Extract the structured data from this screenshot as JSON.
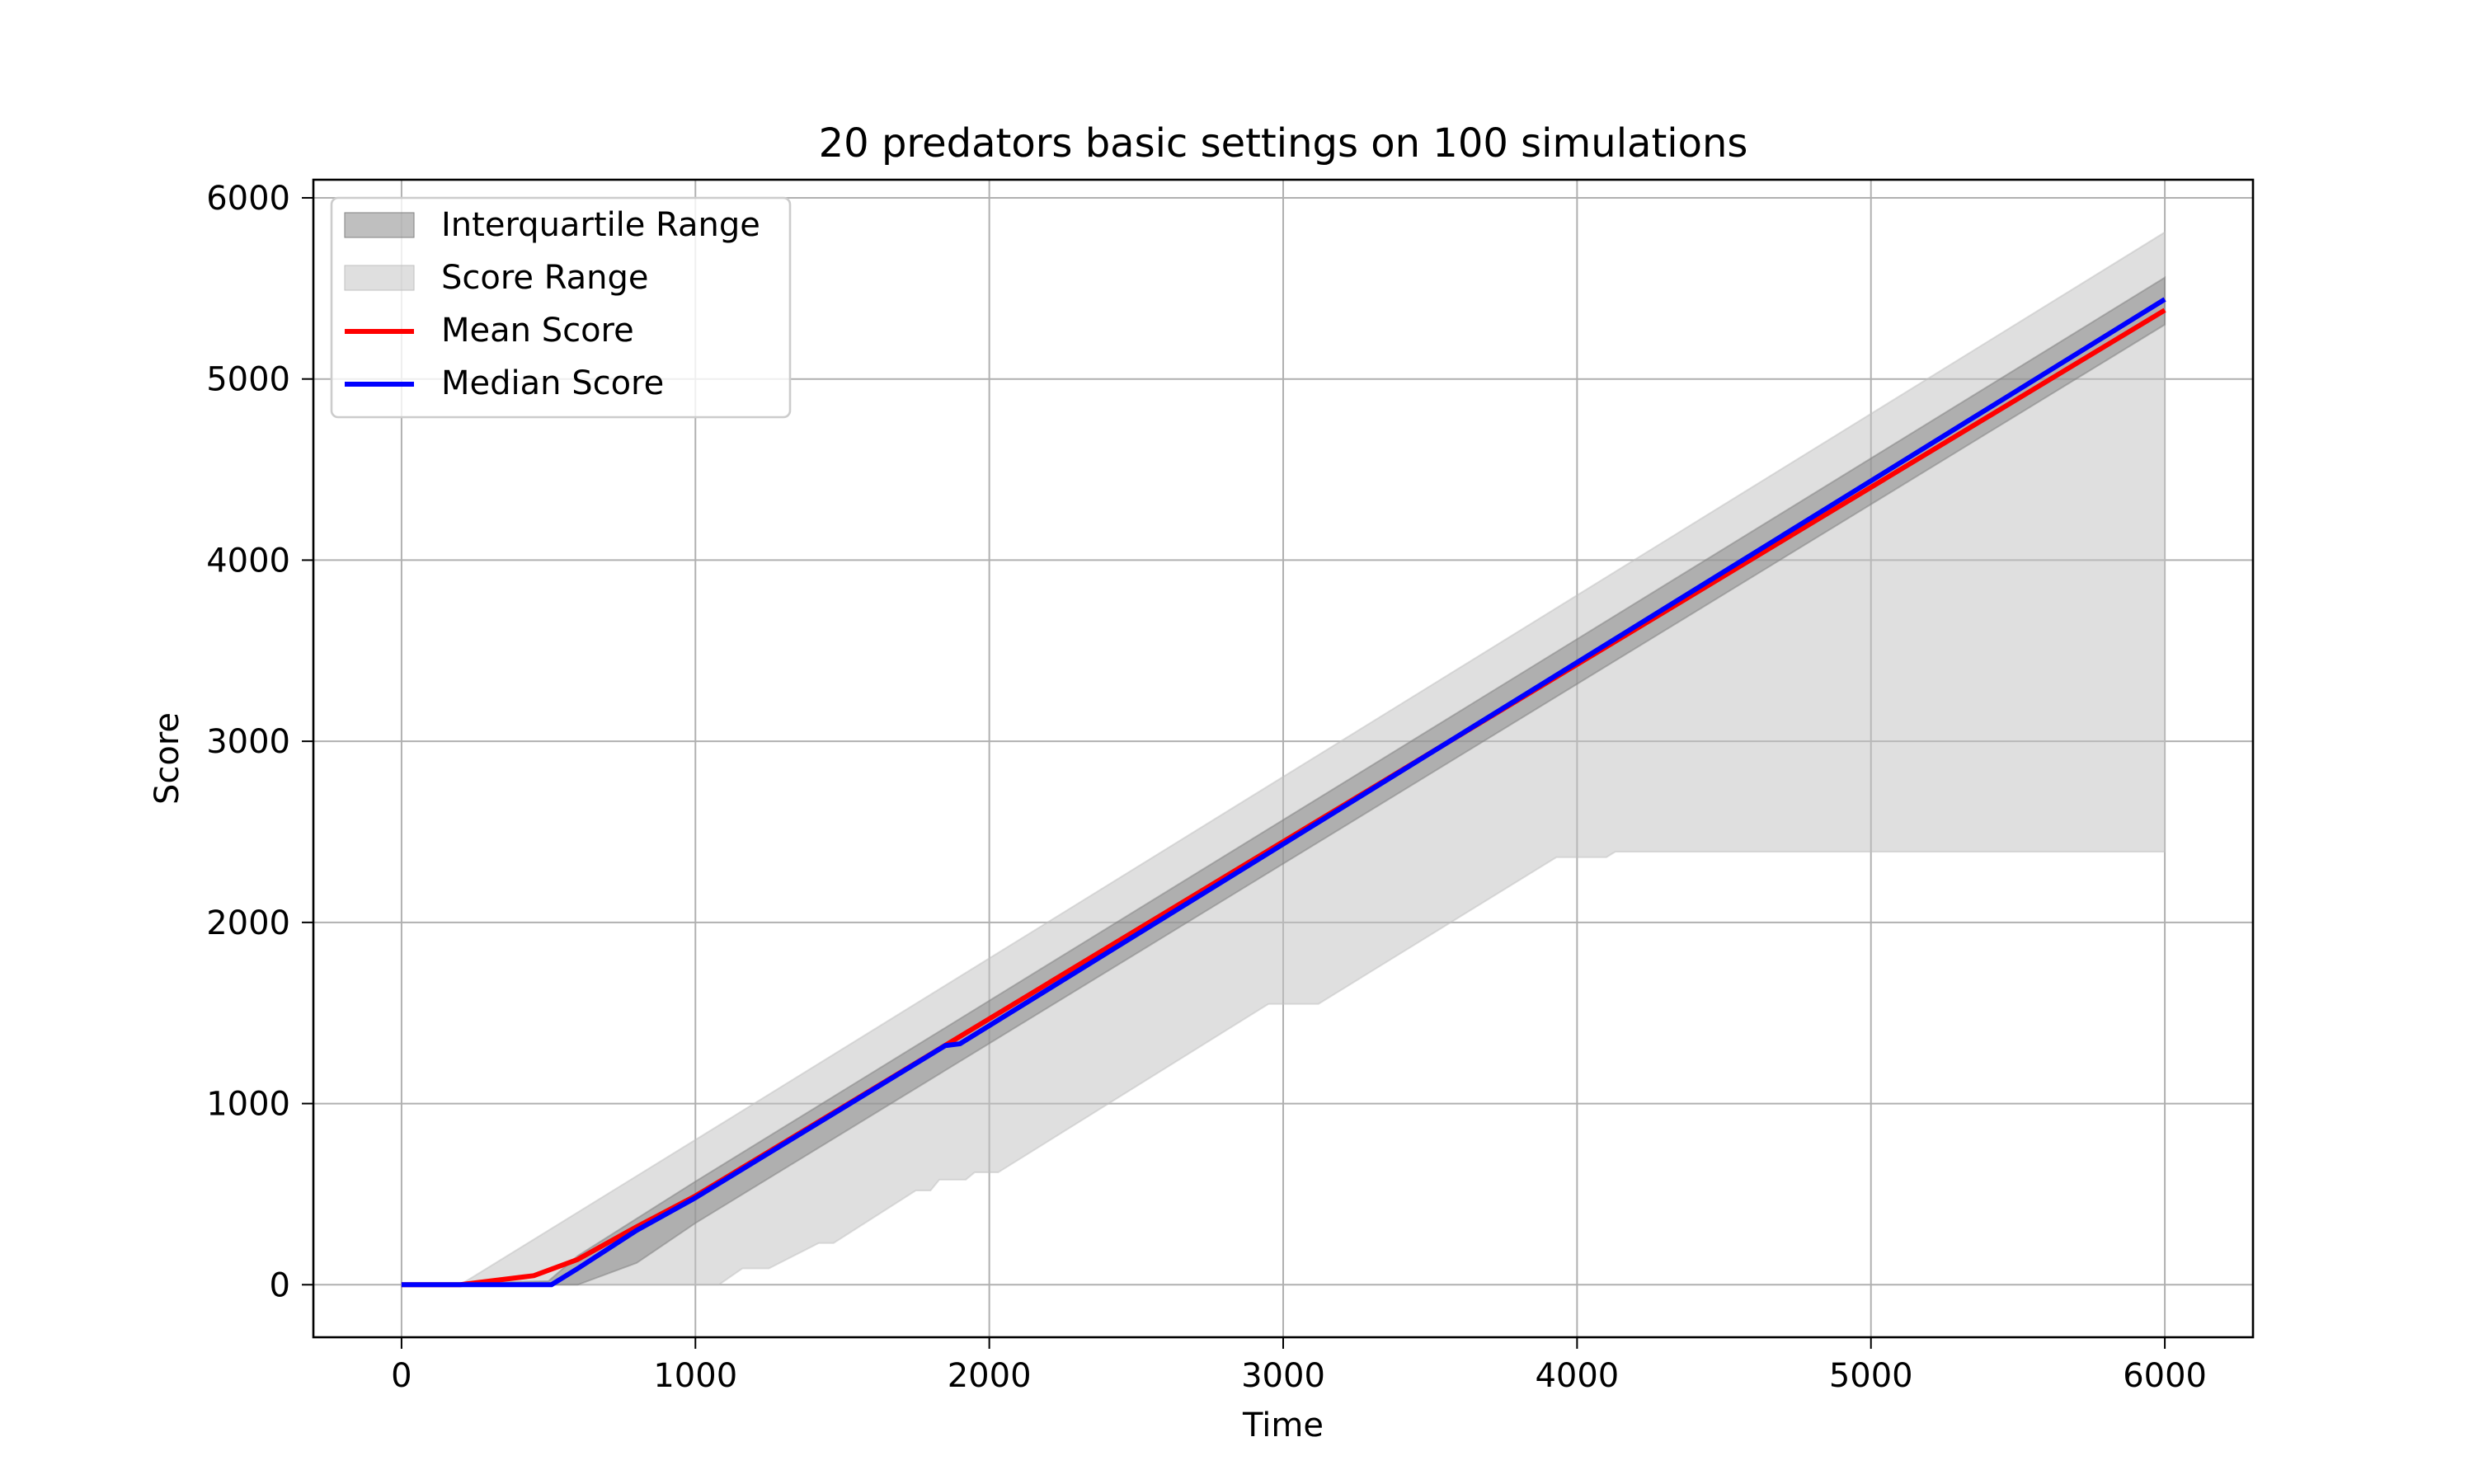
{
  "chart_data": {
    "type": "area",
    "title": "20 predators basic settings on 100 simulations",
    "xlabel": "Time",
    "ylabel": "Score",
    "xlim": [
      -300,
      6300
    ],
    "ylim": [
      -290,
      6100
    ],
    "xticks": [
      0,
      1000,
      2000,
      3000,
      4000,
      5000,
      6000
    ],
    "yticks": [
      0,
      1000,
      2000,
      3000,
      4000,
      5000,
      6000
    ],
    "xtick_labels": [
      "0",
      "1000",
      "2000",
      "3000",
      "4000",
      "5000",
      "6000"
    ],
    "ytick_labels": [
      "0",
      "1000",
      "2000",
      "3000",
      "4000",
      "5000",
      "6000"
    ],
    "grid": true,
    "legend_position": "top-left",
    "legend": [
      {
        "label": "Interquartile Range",
        "kind": "patch",
        "color": "#808080",
        "opacity": 0.5
      },
      {
        "label": "Score Range",
        "kind": "patch",
        "color": "#c0c0c0",
        "opacity": 0.5
      },
      {
        "label": "Mean Score",
        "kind": "line",
        "color": "#ff0000"
      },
      {
        "label": "Median Score",
        "kind": "line",
        "color": "#0000ff"
      }
    ],
    "series": [
      {
        "name": "Score Range",
        "kind": "band",
        "color": "#c0c0c0",
        "opacity": 0.5,
        "upper": [
          [
            0,
            0
          ],
          [
            200,
            0
          ],
          [
            1000,
            800
          ],
          [
            6000,
            5810
          ]
        ],
        "lower": [
          [
            0,
            0
          ],
          [
            1080,
            0
          ],
          [
            1160,
            90
          ],
          [
            1250,
            90
          ],
          [
            1420,
            230
          ],
          [
            1470,
            230
          ],
          [
            1750,
            520
          ],
          [
            1800,
            520
          ],
          [
            1830,
            580
          ],
          [
            1920,
            580
          ],
          [
            1950,
            620
          ],
          [
            2030,
            620
          ],
          [
            2950,
            1550
          ],
          [
            3120,
            1550
          ],
          [
            3930,
            2360
          ],
          [
            4100,
            2360
          ],
          [
            4130,
            2390
          ],
          [
            6000,
            2390
          ]
        ]
      },
      {
        "name": "Interquartile Range",
        "kind": "band",
        "color": "#808080",
        "opacity": 0.5,
        "upper": [
          [
            0,
            0
          ],
          [
            500,
            20
          ],
          [
            600,
            160
          ],
          [
            1000,
            570
          ],
          [
            6000,
            5560
          ]
        ],
        "lower": [
          [
            0,
            0
          ],
          [
            600,
            0
          ],
          [
            800,
            120
          ],
          [
            1000,
            340
          ],
          [
            6000,
            5300
          ]
        ]
      },
      {
        "name": "Mean Score",
        "kind": "line",
        "color": "#ff0000",
        "points": [
          [
            0,
            0
          ],
          [
            200,
            0
          ],
          [
            450,
            50
          ],
          [
            600,
            140
          ],
          [
            800,
            320
          ],
          [
            1000,
            490
          ],
          [
            6000,
            5380
          ]
        ]
      },
      {
        "name": "Median Score",
        "kind": "line",
        "color": "#0000ff",
        "points": [
          [
            0,
            0
          ],
          [
            510,
            0
          ],
          [
            600,
            90
          ],
          [
            800,
            300
          ],
          [
            1000,
            480
          ],
          [
            1850,
            1320
          ],
          [
            1900,
            1330
          ],
          [
            6000,
            5440
          ]
        ]
      }
    ]
  }
}
